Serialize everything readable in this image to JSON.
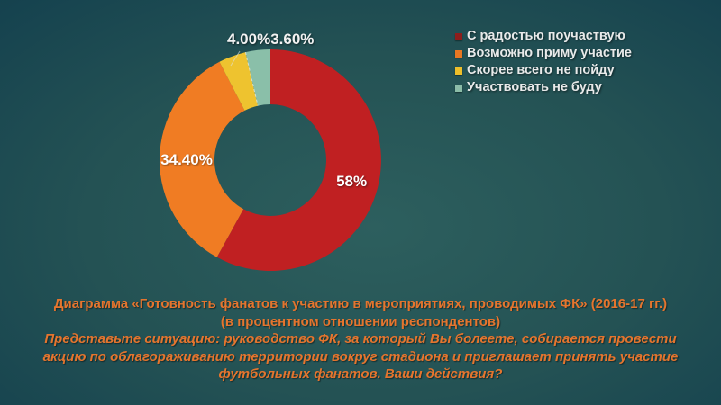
{
  "slide": {
    "background_inner": "#2d5f5e",
    "background_outer": "#103848"
  },
  "chart_data": {
    "type": "pie",
    "subtype": "donut",
    "title": "",
    "legend_position": "right",
    "categories": [
      "С радостью поучаствую",
      "Возможно приму участие",
      "Скорее всего не пойду",
      "Участвовать не буду"
    ],
    "values": [
      58,
      34.4,
      4.0,
      3.6
    ],
    "labels": [
      "58%",
      "34.40%",
      "4.00%",
      "3.60%"
    ],
    "colors": [
      "#c02022",
      "#f07c23",
      "#eec32f",
      "#8abfa9"
    ],
    "legend_marker_colors": [
      "#8c1e1c",
      "#e87722",
      "#eebf2a",
      "#8bbca8"
    ],
    "label_color": "#ffffff"
  },
  "caption": {
    "color": "#e5752e",
    "lines": [
      {
        "text": "Диаграмма «Готовность фанатов к участию в мероприятиях, проводимых ФК» (2016-17 гг.)",
        "italic": false
      },
      {
        "text": "(в процентном отношении респондентов)",
        "italic": false
      },
      {
        "text": "Представьте ситуацию: руководство ФК, за который Вы болеете, собирается провести",
        "italic": true
      },
      {
        "text": "акцию по облагораживанию территории вокруг стадиона и приглашает принять участие",
        "italic": true
      },
      {
        "text": "футбольных фанатов. Ваши действия?",
        "italic": true
      }
    ]
  }
}
